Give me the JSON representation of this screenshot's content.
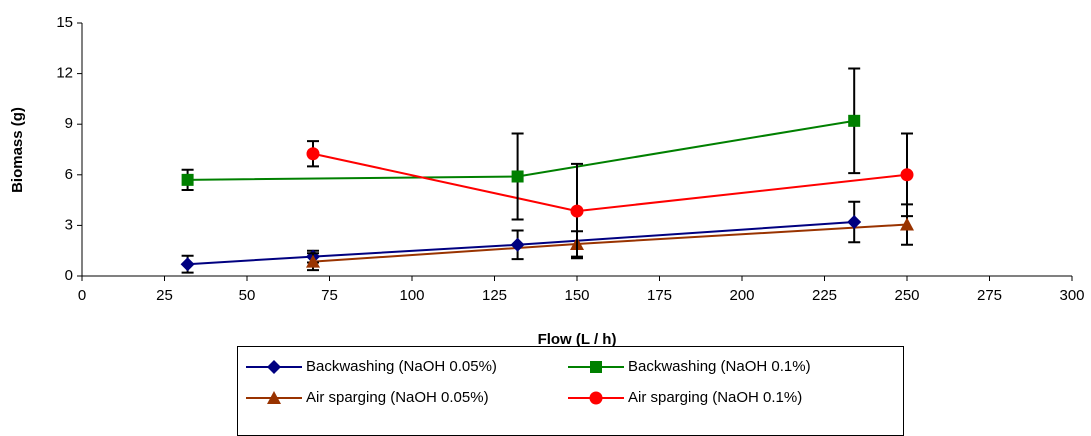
{
  "chart_data": {
    "type": "line",
    "x_label": "Flow (L / h)",
    "y_label": "Biomass (g)",
    "xlim": [
      0,
      300
    ],
    "xticks": [
      0,
      25,
      50,
      75,
      100,
      125,
      150,
      175,
      200,
      225,
      250,
      275,
      300
    ],
    "ylim": [
      0,
      15
    ],
    "yticks": [
      0,
      3,
      6,
      9,
      12,
      15
    ],
    "series": [
      {
        "name": "Backwashing (NaOH 0.05%)",
        "color": "#000080",
        "marker": "diamond",
        "x": [
          32,
          70,
          132,
          234
        ],
        "values": [
          0.7,
          1.15,
          1.85,
          3.2
        ],
        "errors": [
          0.5,
          0.35,
          0.85,
          1.2
        ]
      },
      {
        "name": "Backwashing (NaOH 0.1%)",
        "color": "#008000",
        "marker": "square",
        "x": [
          32,
          132,
          234
        ],
        "values": [
          5.7,
          5.9,
          9.2
        ],
        "errors": [
          0.6,
          2.55,
          3.1
        ]
      },
      {
        "name": "Air sparging (NaOH 0.05%)",
        "color": "#993300",
        "marker": "triangle",
        "x": [
          70,
          150,
          250
        ],
        "values": [
          0.85,
          1.9,
          3.05
        ],
        "errors": [
          0.5,
          0.75,
          1.2
        ]
      },
      {
        "name": "Air sparging (NaOH 0.1%)",
        "color": "#ff0000",
        "marker": "circle",
        "x": [
          70,
          150,
          250
        ],
        "values": [
          7.25,
          3.85,
          6.0
        ],
        "errors": [
          0.75,
          2.8,
          2.45
        ]
      }
    ]
  }
}
